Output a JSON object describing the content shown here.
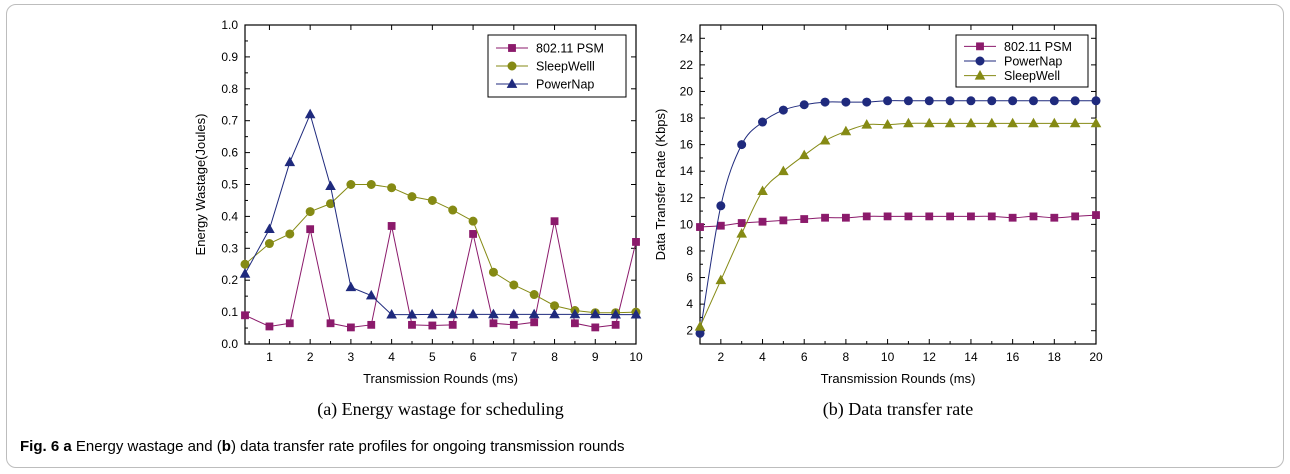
{
  "caption": {
    "fig_label": "Fig. 6",
    "a_letter": "a",
    "text1": "Energy wastage and (",
    "b_letter": "b",
    "text2": ") data transfer rate profiles for ongoing transmission rounds"
  },
  "colors": {
    "psm": "#8b1a6b",
    "sleepwell": "#858a14",
    "powernap": "#1f2a7d"
  },
  "chart_data": [
    {
      "type": "line",
      "caption": "(a) Energy wastage for scheduling",
      "xlabel": "Transmission Rounds (ms)",
      "ylabel": "Energy Wastage(Joules)",
      "xlim": [
        0.4,
        10
      ],
      "ylim": [
        0.0,
        1.0
      ],
      "x_ticks": [
        1,
        2,
        3,
        4,
        5,
        6,
        7,
        8,
        9,
        10
      ],
      "y_ticks": [
        0.0,
        0.1,
        0.2,
        0.3,
        0.4,
        0.5,
        0.6,
        0.7,
        0.8,
        0.9,
        1.0
      ],
      "y_tick_labels": [
        "0.0",
        "0.1",
        "0.2",
        "0.3",
        "0.4",
        "0.5",
        "0.6",
        "0.7",
        "0.8",
        "0.9",
        "1.0"
      ],
      "legend_position": "top-right",
      "series": [
        {
          "name": "802.11 PSM",
          "marker": "square",
          "color_key": "psm",
          "x": [
            0.4,
            1,
            1.5,
            2,
            2.5,
            3,
            3.5,
            4,
            4.5,
            5,
            5.5,
            6,
            6.5,
            7,
            7.5,
            8,
            8.5,
            9,
            9.5,
            10
          ],
          "y": [
            0.09,
            0.055,
            0.065,
            0.36,
            0.065,
            0.052,
            0.06,
            0.37,
            0.06,
            0.058,
            0.06,
            0.345,
            0.065,
            0.06,
            0.068,
            0.385,
            0.065,
            0.052,
            0.06,
            0.32
          ]
        },
        {
          "name": "SleepWelll",
          "marker": "circle",
          "color_key": "sleepwell",
          "x": [
            0.4,
            1,
            1.5,
            2,
            2.5,
            3,
            3.5,
            4,
            4.5,
            5,
            5.5,
            6,
            6.5,
            7,
            7.5,
            8,
            8.5,
            9,
            9.5,
            10
          ],
          "y": [
            0.25,
            0.315,
            0.345,
            0.415,
            0.44,
            0.5,
            0.5,
            0.49,
            0.462,
            0.45,
            0.42,
            0.385,
            0.225,
            0.185,
            0.155,
            0.12,
            0.105,
            0.098,
            0.098,
            0.1
          ]
        },
        {
          "name": "PowerNap",
          "marker": "triangle",
          "color_key": "powernap",
          "x": [
            0.4,
            1,
            1.5,
            2,
            2.5,
            3,
            3.5,
            4,
            4.5,
            5,
            5.5,
            6,
            6.5,
            7,
            7.5,
            8,
            8.5,
            9,
            9.5,
            10
          ],
          "y": [
            0.22,
            0.36,
            0.57,
            0.72,
            0.495,
            0.178,
            0.152,
            0.092,
            0.092,
            0.093,
            0.093,
            0.093,
            0.093,
            0.093,
            0.093,
            0.093,
            0.093,
            0.093,
            0.092,
            0.092
          ]
        }
      ]
    },
    {
      "type": "line",
      "caption": "(b) Data transfer rate",
      "xlabel": "Transmission Rounds (ms)",
      "ylabel": "Data Transfer Rate (Kbps)",
      "xlim": [
        1,
        20
      ],
      "ylim": [
        1,
        25
      ],
      "x_ticks": [
        2,
        4,
        6,
        8,
        10,
        12,
        14,
        16,
        18,
        20
      ],
      "y_ticks": [
        2,
        4,
        6,
        8,
        10,
        12,
        14,
        16,
        18,
        20,
        22,
        24
      ],
      "y_tick_labels": [
        "2",
        "4",
        "6",
        "8",
        "10",
        "12",
        "14",
        "16",
        "18",
        "20",
        "22",
        "24"
      ],
      "legend_position": "top-right",
      "series": [
        {
          "name": "802.11 PSM",
          "marker": "square",
          "color_key": "psm",
          "x": [
            1,
            2,
            3,
            4,
            5,
            6,
            7,
            8,
            9,
            10,
            11,
            12,
            13,
            14,
            15,
            16,
            17,
            18,
            19,
            20
          ],
          "y": [
            9.8,
            9.9,
            10.1,
            10.2,
            10.3,
            10.4,
            10.5,
            10.5,
            10.6,
            10.6,
            10.6,
            10.6,
            10.6,
            10.6,
            10.6,
            10.5,
            10.6,
            10.5,
            10.6,
            10.7
          ]
        },
        {
          "name": "PowerNap",
          "marker": "circle",
          "color_key": "powernap",
          "x": [
            1,
            2,
            3,
            4,
            5,
            6,
            7,
            8,
            9,
            10,
            11,
            12,
            13,
            14,
            15,
            16,
            17,
            18,
            19,
            20
          ],
          "y": [
            1.8,
            11.4,
            16.0,
            17.7,
            18.6,
            19.0,
            19.2,
            19.2,
            19.2,
            19.3,
            19.3,
            19.3,
            19.3,
            19.3,
            19.3,
            19.3,
            19.3,
            19.3,
            19.3,
            19.3
          ]
        },
        {
          "name": "SleepWell",
          "marker": "triangle",
          "color_key": "sleepwell",
          "x": [
            1,
            2,
            3,
            4,
            5,
            6,
            7,
            8,
            9,
            10,
            11,
            12,
            13,
            14,
            15,
            16,
            17,
            18,
            19,
            20
          ],
          "y": [
            2.3,
            5.8,
            9.3,
            12.5,
            14.0,
            15.2,
            16.3,
            17.0,
            17.5,
            17.5,
            17.6,
            17.6,
            17.6,
            17.6,
            17.6,
            17.6,
            17.6,
            17.6,
            17.6,
            17.6
          ]
        }
      ]
    }
  ]
}
